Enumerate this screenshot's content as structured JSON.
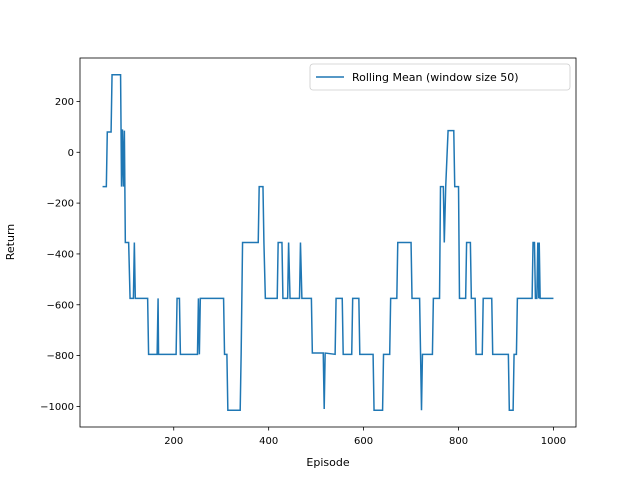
{
  "chart_data": {
    "type": "line",
    "x_label": "Episode",
    "y_label": "Return",
    "legend": "upper right",
    "xlim": [
      2.5,
      1047.5
    ],
    "ylim": [
      -1081,
      371
    ],
    "xticks": [
      200,
      400,
      600,
      800,
      1000
    ],
    "yticks": [
      {
        "value": -1000,
        "label": "−1000"
      },
      {
        "value": -800,
        "label": "−800"
      },
      {
        "value": -600,
        "label": "−600"
      },
      {
        "value": -400,
        "label": "−400"
      },
      {
        "value": -200,
        "label": "−200"
      },
      0,
      200
    ],
    "x": [
      50,
      58,
      60,
      68,
      70,
      88,
      90,
      92,
      94,
      96,
      98,
      105,
      108,
      115,
      117,
      119,
      145,
      147,
      165,
      167,
      168,
      205,
      207,
      212,
      214,
      250,
      252,
      254,
      256,
      260,
      305,
      307,
      312,
      314,
      340,
      342,
      345,
      378,
      380,
      388,
      390,
      393,
      418,
      420,
      428,
      430,
      440,
      442,
      445,
      465,
      467,
      470,
      490,
      492,
      515,
      517,
      519,
      540,
      542,
      555,
      557,
      575,
      577,
      590,
      592,
      620,
      622,
      640,
      642,
      655,
      657,
      670,
      672,
      700,
      702,
      718,
      720,
      722,
      724,
      745,
      747,
      760,
      762,
      768,
      770,
      773,
      778,
      790,
      792,
      800,
      802,
      815,
      817,
      825,
      827,
      835,
      837,
      850,
      852,
      870,
      872,
      905,
      907,
      915,
      917,
      922,
      924,
      955,
      957,
      960,
      962,
      965,
      967,
      969,
      970,
      972,
      1000
    ],
    "series": [
      {
        "name": "Rolling Mean (window size 50)",
        "color": "#1f77b4",
        "values": [
          -135,
          -135,
          80,
          80,
          305,
          305,
          -135,
          90,
          -135,
          85,
          -355,
          -355,
          -575,
          -575,
          -355,
          -575,
          -575,
          -795,
          -795,
          -575,
          -795,
          -795,
          -575,
          -575,
          -795,
          -795,
          -575,
          -795,
          -575,
          -575,
          -575,
          -795,
          -795,
          -1015,
          -1015,
          -795,
          -355,
          -355,
          -135,
          -135,
          -355,
          -575,
          -575,
          -355,
          -355,
          -575,
          -575,
          -355,
          -575,
          -575,
          -355,
          -575,
          -575,
          -790,
          -790,
          -1010,
          -790,
          -795,
          -575,
          -575,
          -795,
          -795,
          -575,
          -575,
          -795,
          -795,
          -1015,
          -1015,
          -795,
          -795,
          -575,
          -575,
          -355,
          -355,
          -575,
          -575,
          -795,
          -1015,
          -795,
          -795,
          -575,
          -575,
          -135,
          -135,
          -355,
          -135,
          85,
          85,
          -135,
          -135,
          -575,
          -575,
          -355,
          -355,
          -575,
          -575,
          -795,
          -795,
          -575,
          -575,
          -795,
          -795,
          -1015,
          -1015,
          -795,
          -795,
          -575,
          -575,
          -355,
          -355,
          -575,
          -575,
          -355,
          -575,
          -355,
          -575,
          -575
        ]
      }
    ]
  }
}
